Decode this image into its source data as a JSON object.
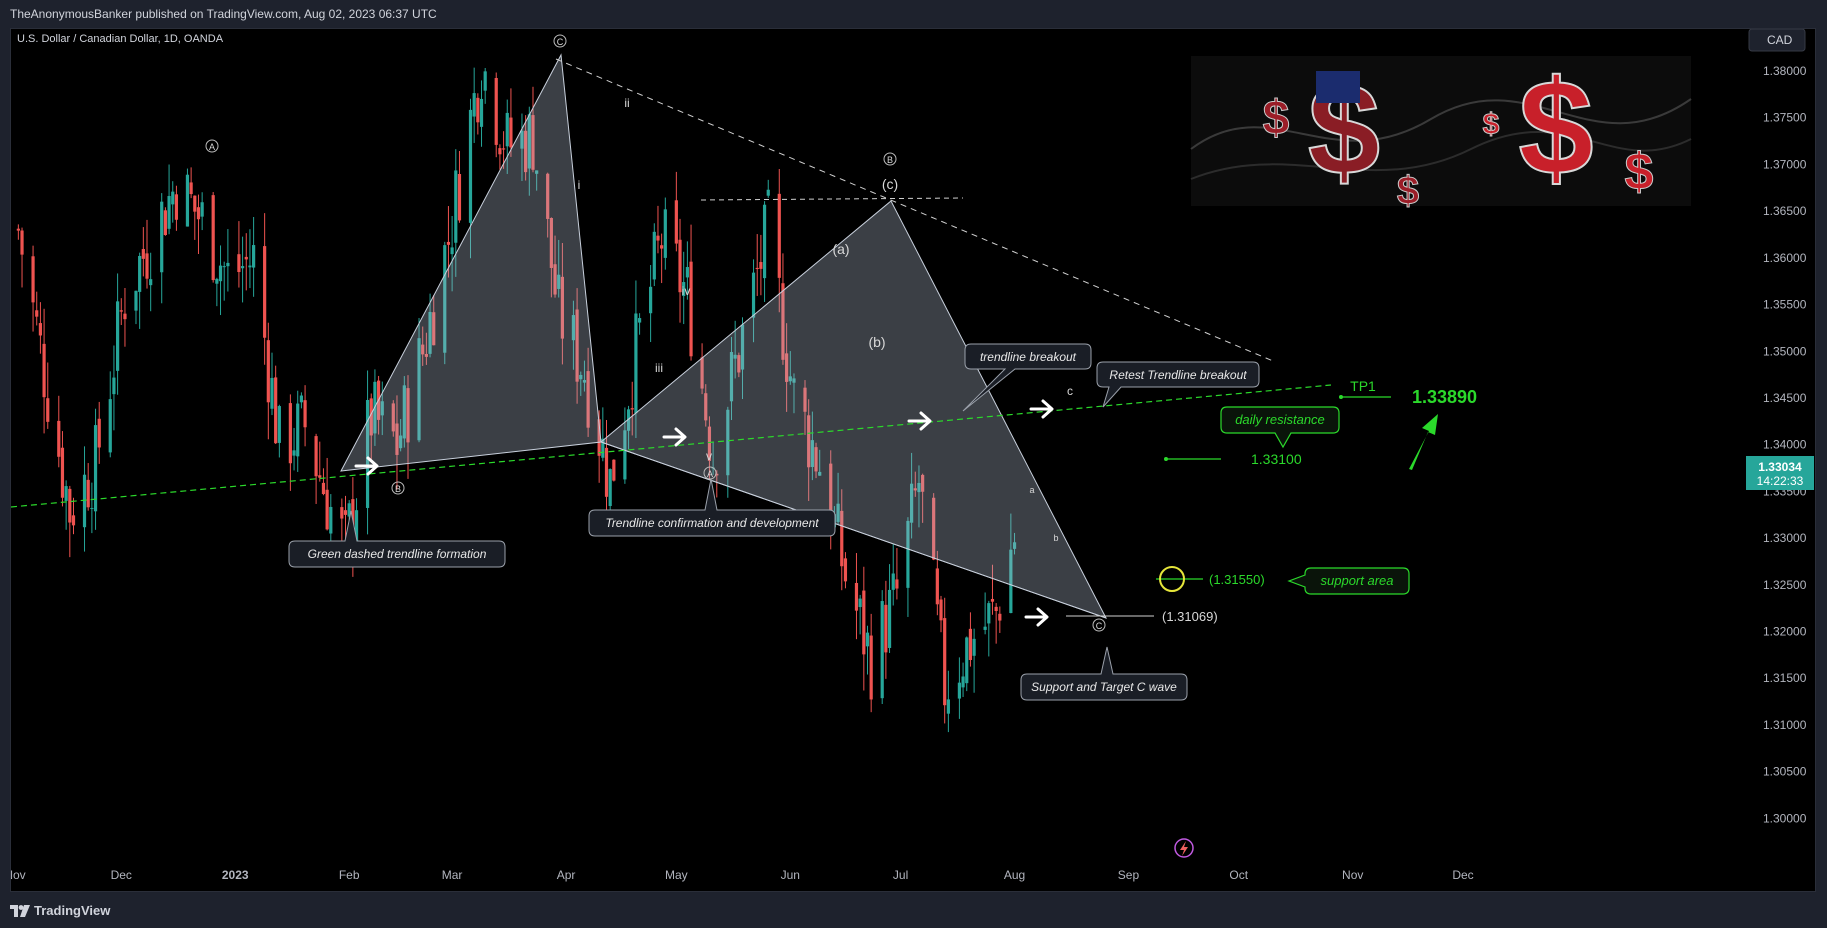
{
  "header": {
    "publisher": "TheAnonymousBanker published on TradingView.com, Aug 02, 2023 06:37 UTC"
  },
  "footer": {
    "brand": "TradingView"
  },
  "symbol": {
    "title": "U.S. Dollar / Canadian Dollar, 1D, OANDA",
    "currency": "CAD"
  },
  "price_tag": {
    "value": "1.33034",
    "countdown": "14:22:33"
  },
  "annotations": {
    "tp1": "TP1",
    "tp1_price": "1.33890",
    "daily_resistance": "daily resistance",
    "daily_resistance_price": "1.33100",
    "support_area": "support area",
    "support_price": "(1.31550)",
    "low_price": "(1.31069)",
    "callout_green": "Green dashed trendline formation",
    "callout_confirm": "Trendline confirmation and development",
    "callout_breakout": "trendline breakout",
    "callout_retest": "Retest Trendline breakout",
    "callout_support_c": "Support and Target C wave"
  },
  "waves": {
    "A1": "A",
    "C1": "C",
    "B1": "B",
    "A2": "A",
    "B2": "B",
    "C2": "C",
    "ii": "ii",
    "i": "i",
    "iii": "iii",
    "iv": "iv",
    "v": "v",
    "a": "(a)",
    "b": "(b)",
    "c": "(c)",
    "c_small": "c",
    "a_small": "a",
    "b_small": "b"
  },
  "colors": {
    "up": "#26a69a",
    "down": "#ef5350",
    "green": "#2bd92b",
    "bg": "#000000"
  },
  "chart_data": {
    "type": "candlestick",
    "title": "U.S. Dollar / Canadian Dollar, 1D, OANDA",
    "xlabel": "",
    "ylabel": "",
    "ylim": [
      1.2965,
      1.3845
    ],
    "y_ticks": [
      "1.38000",
      "1.37500",
      "1.37000",
      "1.36500",
      "1.36000",
      "1.35500",
      "1.35000",
      "1.34500",
      "1.34000",
      "1.33500",
      "1.33000",
      "1.32500",
      "1.32000",
      "1.31500",
      "1.31000",
      "1.30500",
      "1.30000"
    ],
    "x_ticks": [
      "Nov",
      "Dec",
      "2023",
      "Feb",
      "Mar",
      "Apr",
      "May",
      "Jun",
      "Jul",
      "Aug",
      "Sep",
      "Oct",
      "Nov",
      "Dec"
    ],
    "levels": {
      "tp1": 1.3389,
      "daily_resistance": 1.331,
      "support": 1.3155,
      "low": 1.31069,
      "last": 1.33034
    },
    "swing_points": [
      {
        "label": "B",
        "date": "2023-01-31",
        "value": 1.3262
      },
      {
        "label": "C",
        "date": "2023-03-09",
        "value": 1.383
      },
      {
        "label": "A",
        "date": "2023-04-13",
        "value": 1.333
      },
      {
        "label": "B",
        "date": "2023-05-26",
        "value": 1.365
      },
      {
        "label": "C",
        "date": "2023-07-13",
        "value": 1.3108
      }
    ],
    "anchors": [
      {
        "date": "2022-11-03",
        "close": 1.363
      },
      {
        "date": "2022-11-10",
        "close": 1.348
      },
      {
        "date": "2022-11-17",
        "close": 1.333
      },
      {
        "date": "2022-11-24",
        "close": 1.338
      },
      {
        "date": "2022-12-02",
        "close": 1.356
      },
      {
        "date": "2022-12-09",
        "close": 1.362
      },
      {
        "date": "2022-12-16",
        "close": 1.368
      },
      {
        "date": "2022-12-23",
        "close": 1.364
      },
      {
        "date": "2022-12-30",
        "close": 1.358
      },
      {
        "date": "2023-01-06",
        "close": 1.36
      },
      {
        "date": "2023-01-13",
        "close": 1.34
      },
      {
        "date": "2023-01-20",
        "close": 1.342
      },
      {
        "date": "2023-01-27",
        "close": 1.333
      },
      {
        "date": "2023-01-31",
        "close": 1.329
      },
      {
        "date": "2023-02-07",
        "close": 1.343
      },
      {
        "date": "2023-02-14",
        "close": 1.34
      },
      {
        "date": "2023-02-21",
        "close": 1.35
      },
      {
        "date": "2023-02-28",
        "close": 1.362
      },
      {
        "date": "2023-03-09",
        "close": 1.381
      },
      {
        "date": "2023-03-16",
        "close": 1.372
      },
      {
        "date": "2023-03-23",
        "close": 1.373
      },
      {
        "date": "2023-03-30",
        "close": 1.354
      },
      {
        "date": "2023-04-06",
        "close": 1.348
      },
      {
        "date": "2023-04-13",
        "close": 1.336
      },
      {
        "date": "2023-04-20",
        "close": 1.35
      },
      {
        "date": "2023-04-27",
        "close": 1.362
      },
      {
        "date": "2023-05-04",
        "close": 1.356
      },
      {
        "date": "2023-05-11",
        "close": 1.339
      },
      {
        "date": "2023-05-18",
        "close": 1.35
      },
      {
        "date": "2023-05-26",
        "close": 1.363
      },
      {
        "date": "2023-06-02",
        "close": 1.345
      },
      {
        "date": "2023-06-09",
        "close": 1.338
      },
      {
        "date": "2023-06-16",
        "close": 1.326
      },
      {
        "date": "2023-06-23",
        "close": 1.317
      },
      {
        "date": "2023-06-30",
        "close": 1.324
      },
      {
        "date": "2023-07-06",
        "close": 1.336
      },
      {
        "date": "2023-07-13",
        "close": 1.314
      },
      {
        "date": "2023-07-20",
        "close": 1.319
      },
      {
        "date": "2023-07-27",
        "close": 1.322
      },
      {
        "date": "2023-08-01",
        "close": 1.3303
      }
    ]
  }
}
